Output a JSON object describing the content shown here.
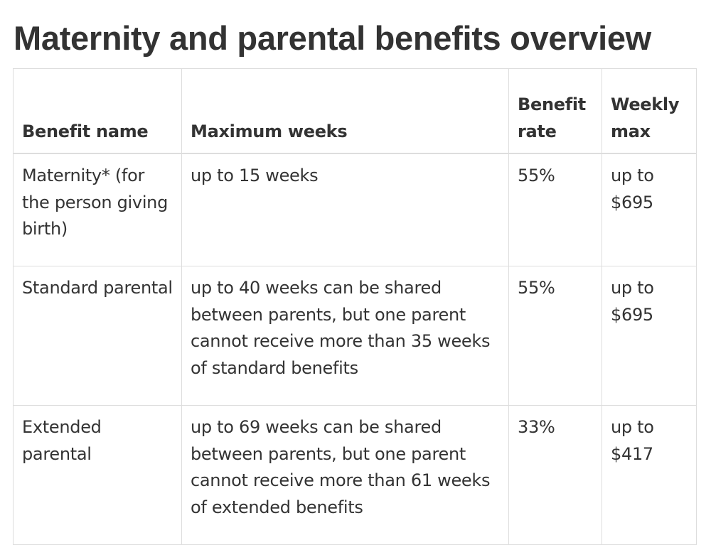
{
  "page": {
    "title": "Maternity and parental benefits overview"
  },
  "table": {
    "headers": [
      "Benefit name",
      "Maximum weeks",
      "Benefit rate",
      "Weekly max"
    ],
    "rows": [
      [
        "Maternity* (for the person giving birth)",
        "up to 15 weeks",
        "55%",
        "up to $695"
      ],
      [
        "Standard parental",
        "up to 40 weeks can be shared between parents, but one parent cannot receive more than 35 weeks of standard benefits",
        "55%",
        "up to $695"
      ],
      [
        "Extended parental",
        "up to 69 weeks can be shared between parents, but one parent cannot receive more than 61 weeks of extended benefits",
        "33%",
        "up to $417"
      ]
    ]
  }
}
